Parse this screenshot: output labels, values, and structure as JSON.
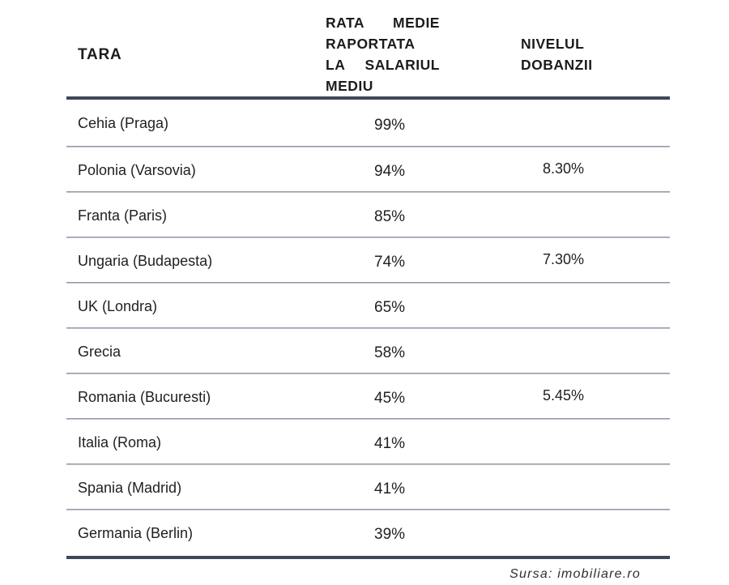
{
  "table": {
    "header": {
      "country": "TARA",
      "rate_lines": [
        "RATA MEDIE",
        "RAPORTATA",
        "LA SALARIUL",
        "MEDIU"
      ],
      "interest_lines": [
        "NIVELUL",
        "DOBANZII"
      ]
    },
    "rows": [
      {
        "country": "Cehia (Praga)",
        "rate": "99%",
        "interest": ""
      },
      {
        "country": "Polonia (Varsovia)",
        "rate": "94%",
        "interest": "8.30%"
      },
      {
        "country": "Franta (Paris)",
        "rate": "85%",
        "interest": ""
      },
      {
        "country": "Ungaria (Budapesta)",
        "rate": "74%",
        "interest": "7.30%"
      },
      {
        "country": "UK (Londra)",
        "rate": "65%",
        "interest": ""
      },
      {
        "country": "Grecia",
        "rate": "58%",
        "interest": ""
      },
      {
        "country": "Romania (Bucuresti)",
        "rate": "45%",
        "interest": "5.45%"
      },
      {
        "country": "Italia (Roma)",
        "rate": "41%",
        "interest": ""
      },
      {
        "country": "Spania (Madrid)",
        "rate": "41%",
        "interest": ""
      },
      {
        "country": "Germania (Berlin)",
        "rate": "39%",
        "interest": ""
      }
    ]
  },
  "footer": {
    "source": "Sursa: imobiliare.ro"
  },
  "colors": {
    "thick_rule": "#3d4957",
    "divider_top": "#7e8695",
    "divider_bottom": "#d2d6dd",
    "text": "#1f1f23"
  },
  "chart_data": {
    "type": "table",
    "columns": [
      "TARA",
      "RATA MEDIE RAPORTATA LA SALARIUL MEDIU",
      "NIVELUL DOBANZII"
    ],
    "rows": [
      [
        "Cehia (Praga)",
        "99%",
        ""
      ],
      [
        "Polonia (Varsovia)",
        "94%",
        "8.30%"
      ],
      [
        "Franta (Paris)",
        "85%",
        ""
      ],
      [
        "Ungaria (Budapesta)",
        "74%",
        "7.30%"
      ],
      [
        "UK (Londra)",
        "65%",
        ""
      ],
      [
        "Grecia",
        "58%",
        ""
      ],
      [
        "Romania (Bucuresti)",
        "45%",
        "5.45%"
      ],
      [
        "Italia (Roma)",
        "41%",
        ""
      ],
      [
        "Spania (Madrid)",
        "41%",
        ""
      ],
      [
        "Germania (Berlin)",
        "39%",
        ""
      ]
    ],
    "title": "",
    "source": "Sursa: imobiliare.ro"
  }
}
